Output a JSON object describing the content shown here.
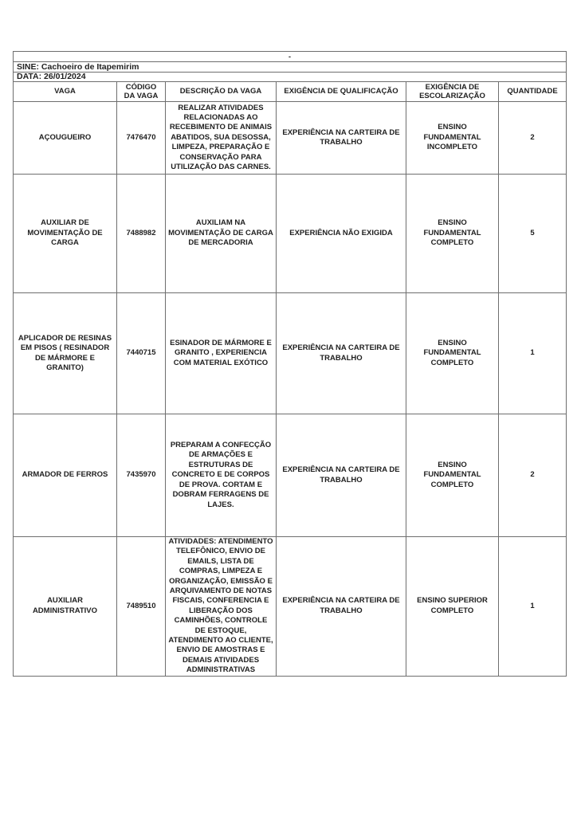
{
  "sheet": {
    "top_note": "-",
    "sine_line": "SINE: Cachoeiro de Itapemirim",
    "date_line": "DATA: 26/01/2024"
  },
  "table": {
    "columns": [
      "VAGA",
      "CÓDIGO DA VAGA",
      "DESCRIÇÃO DA VAGA",
      "EXIGÊNCIA DE QUALIFICAÇÃO",
      "EXIGÊNCIA DE ESCOLARIZAÇÃO",
      "QUANTIDADE"
    ],
    "rows": [
      {
        "vaga": "AÇOUGUEIRO",
        "codigo": "7476470",
        "descricao": "REALIZAR ATIVIDADES RELACIONADAS AO RECEBIMENTO DE ANIMAIS ABATIDOS, SUA DESOSSA, LIMPEZA, PREPARAÇÃO E CONSERVAÇÃO PARA UTILIZAÇÃO DAS CARNES.",
        "qualificacao": "EXPERIÊNCIA NA CARTEIRA DE TRABALHO",
        "escolarizacao": "ENSINO FUNDAMENTAL INCOMPLETO",
        "quantidade": "2"
      },
      {
        "vaga": "AUXILIAR DE MOVIMENTAÇÃO DE CARGA",
        "codigo": "7488982",
        "descricao": "AUXILIAM NA MOVIMENTAÇÃO DE CARGA DE MERCADORIA",
        "qualificacao": "EXPERIÊNCIA NÃO EXIGIDA",
        "escolarizacao": "ENSINO FUNDAMENTAL COMPLETO",
        "quantidade": "5"
      },
      {
        "vaga": "APLICADOR DE RESINAS EM PISOS ( RESINADOR DE MÁRMORE E GRANITO)",
        "codigo": "7440715",
        "descricao": "ESINADOR DE MÁRMORE E GRANITO , EXPERIENCIA COM MATERIAL EXÓTICO",
        "qualificacao": "EXPERIÊNCIA NA CARTEIRA DE TRABALHO",
        "escolarizacao": "ENSINO FUNDAMENTAL COMPLETO",
        "quantidade": "1"
      },
      {
        "vaga": "ARMADOR DE FERROS",
        "codigo": "7435970",
        "descricao": "PREPARAM A CONFECÇÃO DE ARMAÇÕES E ESTRUTURAS DE CONCRETO E DE CORPOS DE PROVA. CORTAM E DOBRAM FERRAGENS DE LAJES.",
        "qualificacao": "EXPERIÊNCIA NA CARTEIRA DE TRABALHO",
        "escolarizacao": "ENSINO FUNDAMENTAL COMPLETO",
        "quantidade": "2"
      },
      {
        "vaga": "AUXILIAR ADMINISTRATIVO",
        "codigo": "7489510",
        "descricao": "ATIVIDADES: ATENDIMENTO TELEFÔNICO, ENVIO DE EMAILS, LISTA DE COMPRAS, LIMPEZA E ORGANIZAÇÃO, EMISSÃO E ARQUIVAMENTO DE NOTAS FISCAIS, CONFERENCIA E LIBERAÇÃO DOS CAMINHÕES, CONTROLE DE ESTOQUE, ATENDIMENTO AO CLIENTE, ENVIO DE AMOSTRAS E DEMAIS ATIVIDADES ADMINISTRATIVAS",
        "qualificacao": "EXPERIÊNCIA NA CARTEIRA DE TRABALHO",
        "escolarizacao": "ENSINO SUPERIOR COMPLETO",
        "quantidade": "1"
      }
    ]
  }
}
